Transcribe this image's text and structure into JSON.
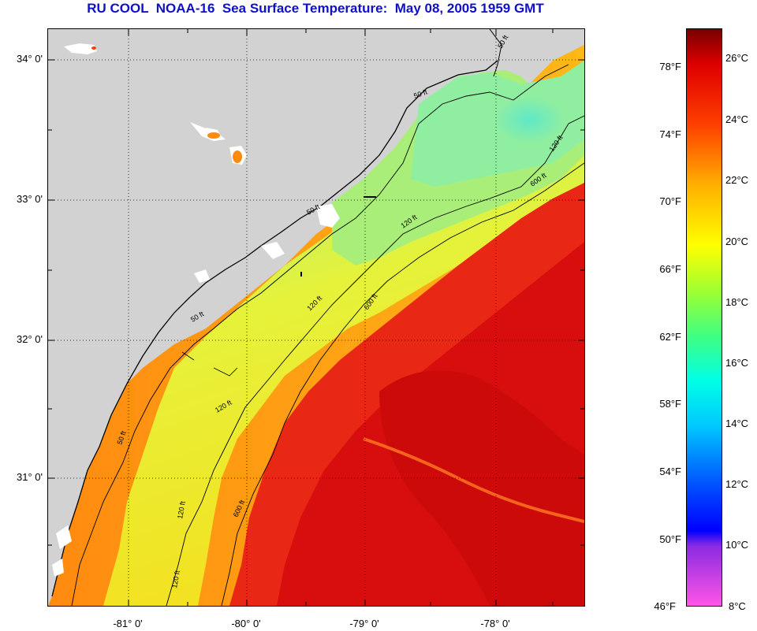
{
  "title": "RU COOL  NOAA-16  Sea Surface Temperature:  May 08, 2005 1959 GMT",
  "map": {
    "latitude_labels": [
      "34° 0'",
      "33° 0'",
      "32° 0'",
      "31° 0'"
    ],
    "longitude_labels": [
      "-81° 0'",
      "-80° 0'",
      "-79° 0'",
      "-78° 0'"
    ],
    "contour_labels": [
      "50 ft",
      "50 ft",
      "50 ft",
      "50 ft",
      "50 ft",
      "120 ft",
      "120 ft",
      "120 ft",
      "120 ft",
      "120 ft",
      "120 ft",
      "600 ft",
      "600 ft",
      "600 ft"
    ],
    "colors": {
      "land": "#d2d2d2",
      "cloud": "#ffffff",
      "shelf_cool": "#9ef58a",
      "shelf_mid": "#e8f23c",
      "nearshore": "#ff9a12",
      "gulf_stream": "#e81414",
      "gulf_stream_core": "#d40a0a"
    }
  },
  "colorbar": {
    "fahrenheit_labels": [
      "78°F",
      "74°F",
      "70°F",
      "66°F",
      "62°F",
      "58°F",
      "54°F",
      "50°F",
      "46°F"
    ],
    "celsius_labels": [
      "26°C",
      "24°C",
      "22°C",
      "20°C",
      "18°C",
      "16°C",
      "14°C",
      "12°C",
      "10°C",
      "8°C"
    ],
    "range_c": [
      8,
      27.2
    ],
    "gradient": [
      {
        "value_c": 8,
        "color": "#ff55e6"
      },
      {
        "value_c": 10,
        "color": "#8a2be2"
      },
      {
        "value_c": 10.5,
        "color": "#0000ff"
      },
      {
        "value_c": 12,
        "color": "#0050ff"
      },
      {
        "value_c": 14,
        "color": "#00c8ff"
      },
      {
        "value_c": 15.5,
        "color": "#00ffe6"
      },
      {
        "value_c": 17,
        "color": "#40ff80"
      },
      {
        "value_c": 18.5,
        "color": "#a0ff30"
      },
      {
        "value_c": 20,
        "color": "#ffff00"
      },
      {
        "value_c": 22,
        "color": "#ffb000"
      },
      {
        "value_c": 24,
        "color": "#ff4000"
      },
      {
        "value_c": 26,
        "color": "#e00000"
      },
      {
        "value_c": 27.2,
        "color": "#780000"
      }
    ]
  }
}
